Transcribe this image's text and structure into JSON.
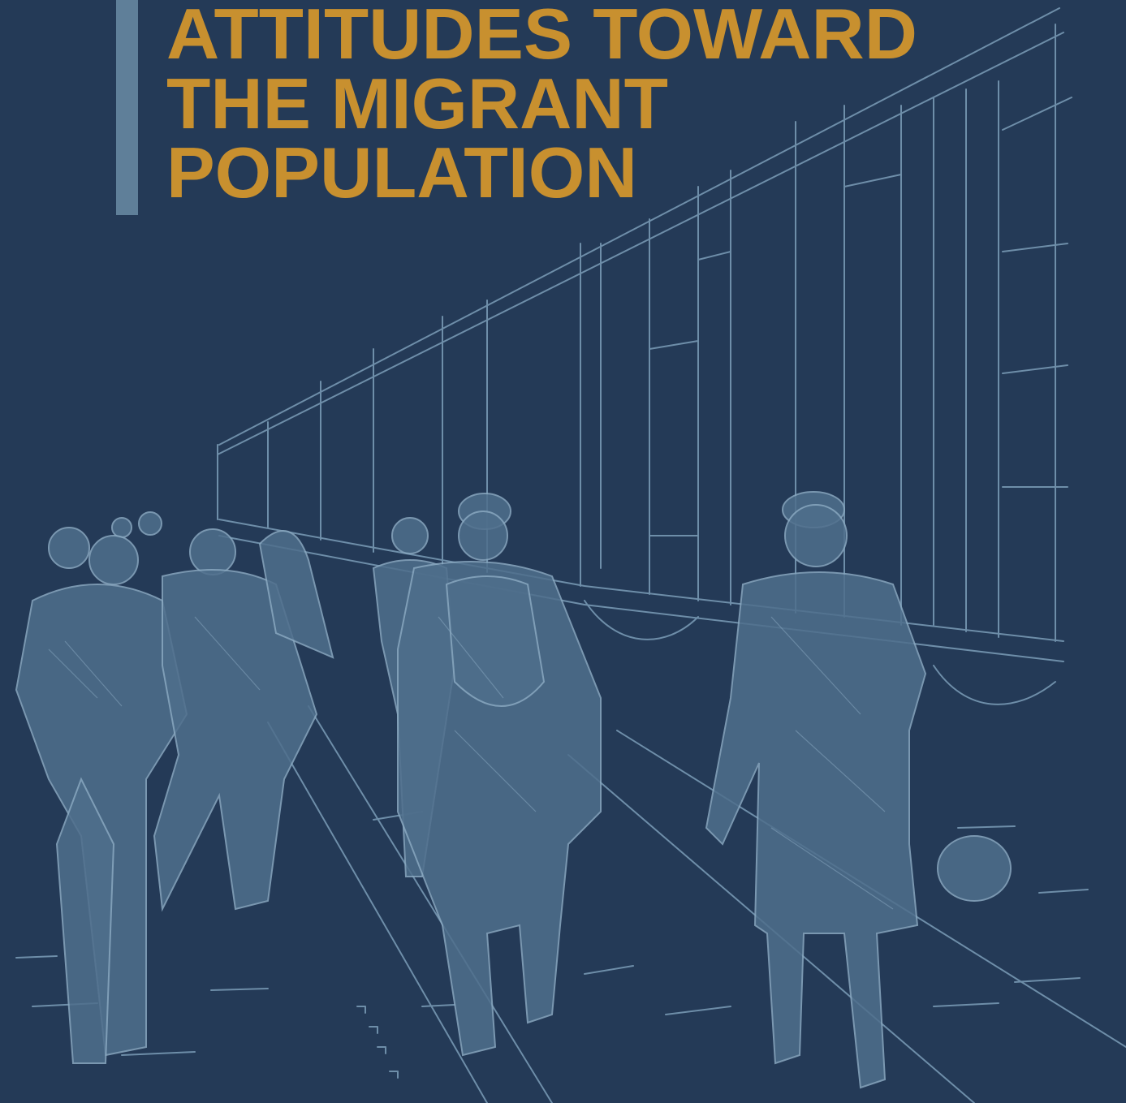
{
  "title": {
    "lines": [
      "ATTITUDES TOWARD",
      "THE MIGRANT",
      "POPULATION"
    ]
  }
}
